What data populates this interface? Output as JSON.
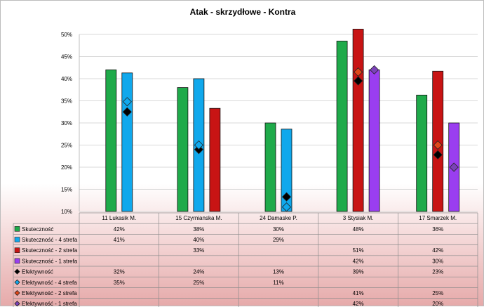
{
  "chart_data": {
    "type": "bar",
    "title": "Atak - skrzydłowe - Kontra",
    "xlabel": "",
    "ylabel": "",
    "ylim": [
      0.1,
      0.5
    ],
    "yticks": [
      "10%",
      "15%",
      "20%",
      "25%",
      "30%",
      "35%",
      "40%",
      "45%",
      "50%"
    ],
    "grid": true,
    "legend_placement": "data-table",
    "categories": [
      "11 Lukasik M.",
      "15 Czyrnianska M.",
      "24 Damaske P.",
      "3 Stysiak M.",
      "17 Smarzek M."
    ],
    "series": [
      {
        "name": "Skuteczność",
        "kind": "bar",
        "color": "#1faa4a",
        "values": [
          0.42,
          0.38,
          0.3,
          0.485,
          0.363
        ],
        "labels": [
          "42%",
          "38%",
          "30%",
          "48%",
          "36%"
        ]
      },
      {
        "name": "Skuteczność - 4 strefa",
        "kind": "bar",
        "color": "#10a8ec",
        "values": [
          0.413,
          0.4,
          0.286,
          null,
          null
        ],
        "labels": [
          "41%",
          "40%",
          "29%",
          "",
          ""
        ]
      },
      {
        "name": "Skuteczność - 2 strefa",
        "kind": "bar",
        "color": "#c81414",
        "values": [
          null,
          0.333,
          null,
          0.512,
          0.417
        ],
        "labels": [
          "",
          "33%",
          "",
          "51%",
          "42%"
        ]
      },
      {
        "name": "Skuteczność - 1 strefa",
        "kind": "bar",
        "color": "#9a3ef0",
        "values": [
          null,
          null,
          null,
          0.42,
          0.3
        ],
        "labels": [
          "",
          "",
          "",
          "42%",
          "30%"
        ]
      },
      {
        "name": "Efektywność",
        "kind": "marker",
        "color": "#000000",
        "values": [
          0.325,
          0.24,
          0.133,
          0.395,
          0.228
        ],
        "labels": [
          "32%",
          "24%",
          "13%",
          "39%",
          "23%"
        ]
      },
      {
        "name": "Efektywność - 4 strefa",
        "kind": "marker",
        "color": "#10a8ec",
        "values": [
          0.348,
          0.25,
          0.11,
          null,
          null
        ],
        "labels": [
          "35%",
          "25%",
          "11%",
          "",
          ""
        ]
      },
      {
        "name": "Efektywność - 2 strefa",
        "kind": "marker",
        "color": "#e0481a",
        "values": [
          null,
          null,
          null,
          0.415,
          0.25
        ],
        "labels": [
          "",
          "",
          "",
          "41%",
          "25%"
        ]
      },
      {
        "name": "Efektywność - 1 strefa",
        "kind": "marker",
        "color": "#7b42b8",
        "values": [
          null,
          null,
          null,
          0.42,
          0.2
        ],
        "labels": [
          "",
          "",
          "",
          "42%",
          "20%"
        ]
      }
    ]
  }
}
